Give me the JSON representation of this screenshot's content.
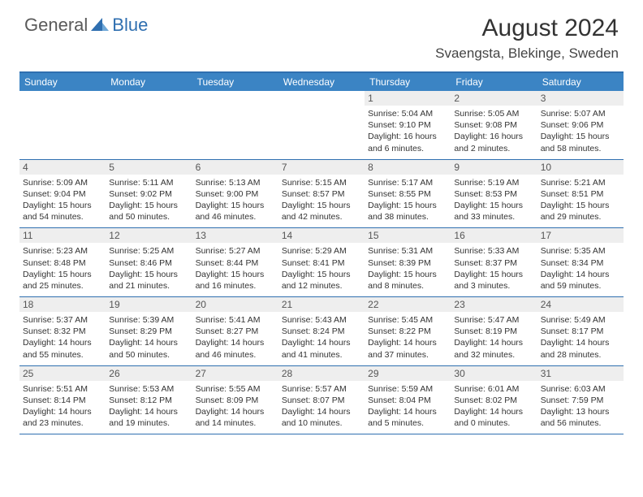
{
  "logo": {
    "part1": "General",
    "part2": "Blue"
  },
  "title": "August 2024",
  "location": "Svaengsta, Blekinge, Sweden",
  "colors": {
    "header_bg": "#3b84c4",
    "border": "#2f6fb0",
    "daynum_bg": "#eeeeee",
    "text": "#333333"
  },
  "weekdays": [
    "Sunday",
    "Monday",
    "Tuesday",
    "Wednesday",
    "Thursday",
    "Friday",
    "Saturday"
  ],
  "weeks": [
    [
      {
        "n": "",
        "t": ""
      },
      {
        "n": "",
        "t": ""
      },
      {
        "n": "",
        "t": ""
      },
      {
        "n": "",
        "t": ""
      },
      {
        "n": "1",
        "t": "Sunrise: 5:04 AM\nSunset: 9:10 PM\nDaylight: 16 hours and 6 minutes."
      },
      {
        "n": "2",
        "t": "Sunrise: 5:05 AM\nSunset: 9:08 PM\nDaylight: 16 hours and 2 minutes."
      },
      {
        "n": "3",
        "t": "Sunrise: 5:07 AM\nSunset: 9:06 PM\nDaylight: 15 hours and 58 minutes."
      }
    ],
    [
      {
        "n": "4",
        "t": "Sunrise: 5:09 AM\nSunset: 9:04 PM\nDaylight: 15 hours and 54 minutes."
      },
      {
        "n": "5",
        "t": "Sunrise: 5:11 AM\nSunset: 9:02 PM\nDaylight: 15 hours and 50 minutes."
      },
      {
        "n": "6",
        "t": "Sunrise: 5:13 AM\nSunset: 9:00 PM\nDaylight: 15 hours and 46 minutes."
      },
      {
        "n": "7",
        "t": "Sunrise: 5:15 AM\nSunset: 8:57 PM\nDaylight: 15 hours and 42 minutes."
      },
      {
        "n": "8",
        "t": "Sunrise: 5:17 AM\nSunset: 8:55 PM\nDaylight: 15 hours and 38 minutes."
      },
      {
        "n": "9",
        "t": "Sunrise: 5:19 AM\nSunset: 8:53 PM\nDaylight: 15 hours and 33 minutes."
      },
      {
        "n": "10",
        "t": "Sunrise: 5:21 AM\nSunset: 8:51 PM\nDaylight: 15 hours and 29 minutes."
      }
    ],
    [
      {
        "n": "11",
        "t": "Sunrise: 5:23 AM\nSunset: 8:48 PM\nDaylight: 15 hours and 25 minutes."
      },
      {
        "n": "12",
        "t": "Sunrise: 5:25 AM\nSunset: 8:46 PM\nDaylight: 15 hours and 21 minutes."
      },
      {
        "n": "13",
        "t": "Sunrise: 5:27 AM\nSunset: 8:44 PM\nDaylight: 15 hours and 16 minutes."
      },
      {
        "n": "14",
        "t": "Sunrise: 5:29 AM\nSunset: 8:41 PM\nDaylight: 15 hours and 12 minutes."
      },
      {
        "n": "15",
        "t": "Sunrise: 5:31 AM\nSunset: 8:39 PM\nDaylight: 15 hours and 8 minutes."
      },
      {
        "n": "16",
        "t": "Sunrise: 5:33 AM\nSunset: 8:37 PM\nDaylight: 15 hours and 3 minutes."
      },
      {
        "n": "17",
        "t": "Sunrise: 5:35 AM\nSunset: 8:34 PM\nDaylight: 14 hours and 59 minutes."
      }
    ],
    [
      {
        "n": "18",
        "t": "Sunrise: 5:37 AM\nSunset: 8:32 PM\nDaylight: 14 hours and 55 minutes."
      },
      {
        "n": "19",
        "t": "Sunrise: 5:39 AM\nSunset: 8:29 PM\nDaylight: 14 hours and 50 minutes."
      },
      {
        "n": "20",
        "t": "Sunrise: 5:41 AM\nSunset: 8:27 PM\nDaylight: 14 hours and 46 minutes."
      },
      {
        "n": "21",
        "t": "Sunrise: 5:43 AM\nSunset: 8:24 PM\nDaylight: 14 hours and 41 minutes."
      },
      {
        "n": "22",
        "t": "Sunrise: 5:45 AM\nSunset: 8:22 PM\nDaylight: 14 hours and 37 minutes."
      },
      {
        "n": "23",
        "t": "Sunrise: 5:47 AM\nSunset: 8:19 PM\nDaylight: 14 hours and 32 minutes."
      },
      {
        "n": "24",
        "t": "Sunrise: 5:49 AM\nSunset: 8:17 PM\nDaylight: 14 hours and 28 minutes."
      }
    ],
    [
      {
        "n": "25",
        "t": "Sunrise: 5:51 AM\nSunset: 8:14 PM\nDaylight: 14 hours and 23 minutes."
      },
      {
        "n": "26",
        "t": "Sunrise: 5:53 AM\nSunset: 8:12 PM\nDaylight: 14 hours and 19 minutes."
      },
      {
        "n": "27",
        "t": "Sunrise: 5:55 AM\nSunset: 8:09 PM\nDaylight: 14 hours and 14 minutes."
      },
      {
        "n": "28",
        "t": "Sunrise: 5:57 AM\nSunset: 8:07 PM\nDaylight: 14 hours and 10 minutes."
      },
      {
        "n": "29",
        "t": "Sunrise: 5:59 AM\nSunset: 8:04 PM\nDaylight: 14 hours and 5 minutes."
      },
      {
        "n": "30",
        "t": "Sunrise: 6:01 AM\nSunset: 8:02 PM\nDaylight: 14 hours and 0 minutes."
      },
      {
        "n": "31",
        "t": "Sunrise: 6:03 AM\nSunset: 7:59 PM\nDaylight: 13 hours and 56 minutes."
      }
    ]
  ]
}
